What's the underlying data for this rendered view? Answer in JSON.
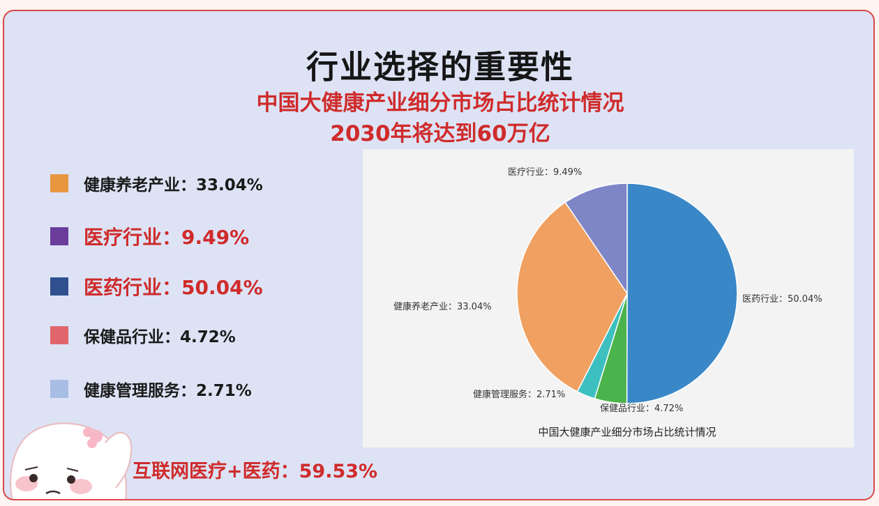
{
  "header": {
    "title": "行业选择的重要性",
    "subtitle_line1": "中国大健康产业细分市场占比统计情况",
    "subtitle_line2": "2030年将达到60万亿"
  },
  "legend": [
    {
      "text": "健康养老产业：33.04%",
      "color": "#e8963f",
      "emphasis": false
    },
    {
      "text": "医疗行业：9.49%",
      "color": "#6a3d9a",
      "emphasis": true
    },
    {
      "text": "医药行业：50.04%",
      "color": "#2f4f8f",
      "emphasis": true
    },
    {
      "text": "保健品行业：4.72%",
      "color": "#e0666b",
      "emphasis": false
    },
    {
      "text": "健康管理服务：2.71%",
      "color": "#a8bde3",
      "emphasis": false
    }
  ],
  "footer_note": "互联网医疗+医药：59.53%",
  "chart_data": {
    "type": "pie",
    "title": "中国大健康产业细分市场占比统计情况",
    "unit": "%",
    "slices": [
      {
        "label": "医药行业：50.04%",
        "value": 50.04,
        "color": "#3a87c8"
      },
      {
        "label": "保健品行业：4.72%",
        "value": 4.72,
        "color": "#4bb34b"
      },
      {
        "label": "健康管理服务：2.71%",
        "value": 2.71,
        "color": "#3dbfbf"
      },
      {
        "label": "健康养老产业：33.04%",
        "value": 33.04,
        "color": "#f0a060"
      },
      {
        "label": "医疗行业：9.49%",
        "value": 9.49,
        "color": "#7f86c7"
      }
    ]
  }
}
